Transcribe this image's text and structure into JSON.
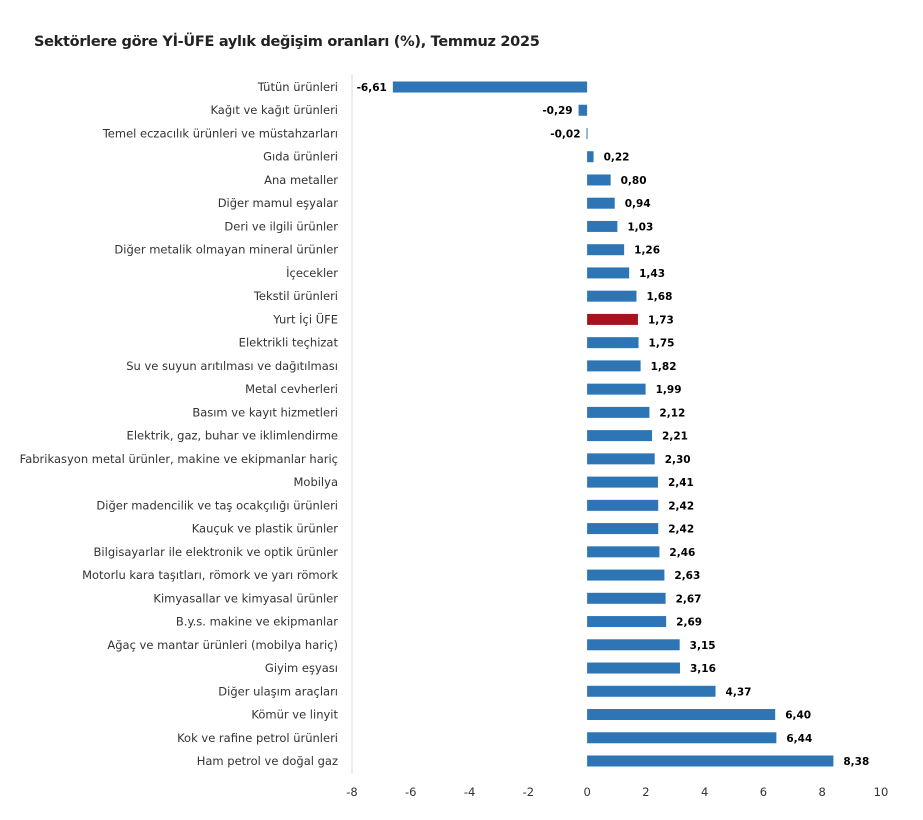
{
  "chart_data": {
    "type": "bar",
    "orientation": "horizontal",
    "title": "Sektörlere göre Yİ-ÜFE aylık değişim oranları (%), Temmuz 2025",
    "xlabel": "",
    "ylabel": "",
    "xlim": [
      -8,
      10
    ],
    "xticks": [
      -8,
      -6,
      -4,
      -2,
      0,
      2,
      4,
      6,
      8,
      10
    ],
    "grid": false,
    "colors": {
      "default": "#2e75b6",
      "highlight": "#a5141e"
    },
    "highlight_category": "Yurt İçi ÜFE",
    "categories": [
      "Tütün ürünleri",
      "Kağıt ve kağıt ürünleri",
      "Temel eczacılık ürünleri ve müstahzarları",
      "Gıda ürünleri",
      "Ana metaller",
      "Diğer mamul eşyalar",
      "Deri ve ilgili ürünler",
      "Diğer metalik olmayan mineral ürünler",
      "İçecekler",
      "Tekstil ürünleri",
      "Yurt İçi ÜFE",
      "Elektrikli teçhizat",
      "Su ve suyun arıtılması ve dağıtılması",
      "Metal cevherleri",
      "Basım ve kayıt hizmetleri",
      "Elektrik, gaz, buhar ve iklimlendirme",
      "Fabrikasyon metal ürünler, makine ve ekipmanlar hariç",
      "Mobilya",
      "Diğer madencilik ve taş ocakçılığı ürünleri",
      "Kauçuk ve plastik ürünler",
      "Bilgisayarlar ile elektronik ve optik ürünler",
      "Motorlu kara taşıtları, römork ve yarı römork",
      "Kimyasallar ve kimyasal ürünler",
      "B.y.s. makine ve ekipmanlar",
      "Ağaç ve mantar ürünleri (mobilya hariç)",
      "Giyim eşyası",
      "Diğer ulaşım araçları",
      "Kömür ve linyit",
      "Kok ve rafine petrol ürünleri",
      "Ham petrol ve doğal gaz"
    ],
    "values": [
      -6.61,
      -0.29,
      -0.02,
      0.22,
      0.8,
      0.94,
      1.03,
      1.26,
      1.43,
      1.68,
      1.73,
      1.75,
      1.82,
      1.99,
      2.12,
      2.21,
      2.3,
      2.41,
      2.42,
      2.42,
      2.46,
      2.63,
      2.67,
      2.69,
      3.15,
      3.16,
      4.37,
      6.4,
      6.44,
      8.38
    ],
    "value_labels": [
      "-6,61",
      "-0,29",
      "-0,02",
      "0,22",
      "0,80",
      "0,94",
      "1,03",
      "1,26",
      "1,43",
      "1,68",
      "1,73",
      "1,75",
      "1,82",
      "1,99",
      "2,12",
      "2,21",
      "2,30",
      "2,41",
      "2,42",
      "2,42",
      "2,46",
      "2,63",
      "2,67",
      "2,69",
      "3,15",
      "3,16",
      "4,37",
      "6,40",
      "6,44",
      "8,38"
    ],
    "tick_labels": [
      "-8",
      "-6",
      "-4",
      "-2",
      "0",
      "2",
      "4",
      "6",
      "8",
      "10"
    ]
  }
}
